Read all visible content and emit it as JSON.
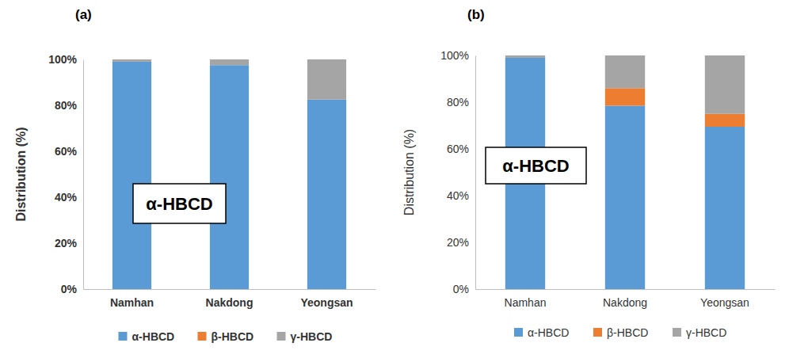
{
  "chart_data": [
    {
      "type": "bar",
      "title": "(a)",
      "y_label": "Distribution (%)",
      "annotation": "α-HBCD",
      "categories": [
        "Namhan",
        "Nakdong",
        "Yeongsan"
      ],
      "series": [
        {
          "name": "α-HBCD",
          "color": "#5b9bd5",
          "values": [
            99,
            97.5,
            82.5
          ]
        },
        {
          "name": "β-HBCD",
          "color": "#ed7d31",
          "values": [
            0,
            0,
            0
          ]
        },
        {
          "name": "γ-HBCD",
          "color": "#a5a5a5",
          "values": [
            1,
            2.5,
            17.5
          ]
        }
      ],
      "ylim": [
        0,
        100
      ],
      "yticks": [
        {
          "value": 0,
          "label": "0%"
        },
        {
          "value": 20,
          "label": "20%"
        },
        {
          "value": 40,
          "label": "40%"
        },
        {
          "value": 60,
          "label": "60%"
        },
        {
          "value": 80,
          "label": "80%"
        },
        {
          "value": 100,
          "label": "100%"
        }
      ],
      "stacked": true,
      "grid": false,
      "legend": "bottom"
    },
    {
      "type": "bar",
      "title": "(b)",
      "y_label": "Distribution (%)",
      "annotation": "α-HBCD",
      "categories": [
        "Namhan",
        "Nakdong",
        "Yeongsan"
      ],
      "series": [
        {
          "name": "α-HBCD",
          "color": "#5b9bd5",
          "values": [
            99,
            78.5,
            69.5
          ]
        },
        {
          "name": "β-HBCD",
          "color": "#ed7d31",
          "values": [
            0,
            7.5,
            5.5
          ]
        },
        {
          "name": "γ-HBCD",
          "color": "#a5a5a5",
          "values": [
            1,
            14,
            25
          ]
        }
      ],
      "ylim": [
        0,
        100
      ],
      "yticks": [
        {
          "value": 0,
          "label": "0%"
        },
        {
          "value": 20,
          "label": "20%"
        },
        {
          "value": 40,
          "label": "40%"
        },
        {
          "value": 60,
          "label": "60%"
        },
        {
          "value": 80,
          "label": "80%"
        },
        {
          "value": 100,
          "label": "100%"
        }
      ],
      "stacked": true,
      "grid": false,
      "legend": "bottom"
    }
  ]
}
